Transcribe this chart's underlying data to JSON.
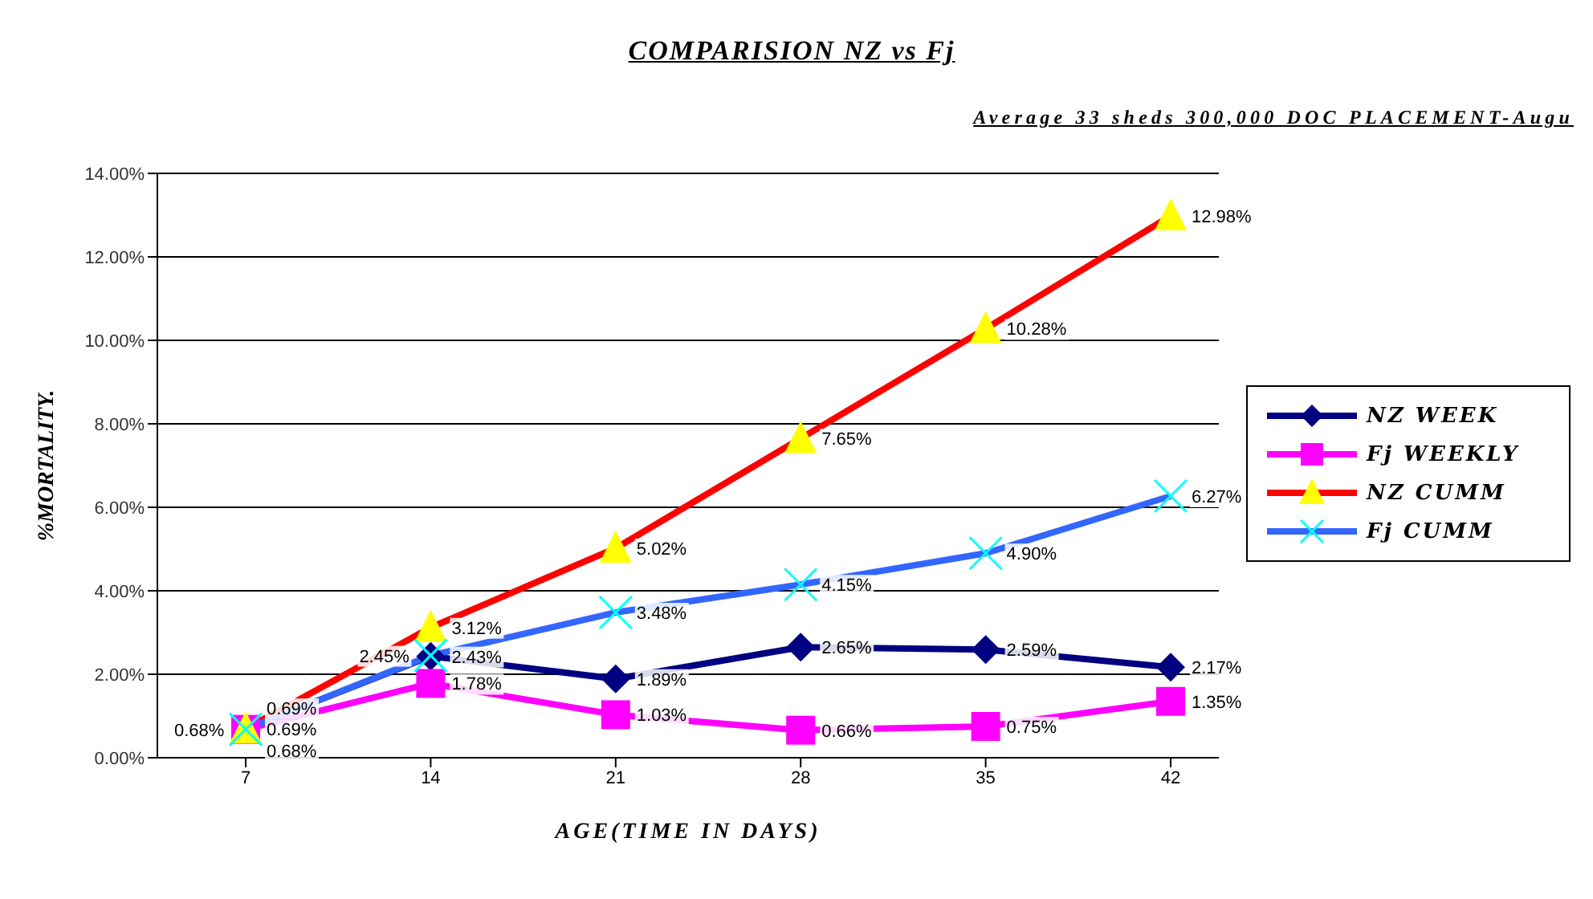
{
  "chart_data": {
    "type": "line",
    "title": "COMPARISION NZ vs Fj",
    "subtitle": "Average 33 sheds 300,000 DOC PLACEMENT-Augu",
    "xlabel": "AGE(TIME IN DAYS)",
    "ylabel": "%MORTALITY.",
    "categories": [
      "7",
      "14",
      "21",
      "28",
      "35",
      "42"
    ],
    "series": [
      {
        "name": "NZ WEEK",
        "color": "#000080",
        "marker": "diamond",
        "values": [
          0.69,
          2.43,
          1.89,
          2.65,
          2.59,
          2.17
        ],
        "value_labels": [
          "0.69%",
          "2.43%",
          "1.89%",
          "2.65%",
          "2.59%",
          "2.17%"
        ]
      },
      {
        "name": "Fj WEEKLY",
        "color": "#ff00ff",
        "marker": "square",
        "values": [
          0.68,
          1.78,
          1.03,
          0.66,
          0.75,
          1.35
        ],
        "value_labels": [
          "0.68%",
          "1.78%",
          "1.03%",
          "0.66%",
          "0.75%",
          "1.35%"
        ]
      },
      {
        "name": "NZ CUMM",
        "color": "#ff0000",
        "colors": [
          "#ffff00",
          "#ffff00",
          "#ffff00",
          "#ffff00",
          "#ffff00",
          "#ffff00"
        ],
        "marker": "triangle",
        "values": [
          0.69,
          3.12,
          5.02,
          7.65,
          10.28,
          12.98
        ],
        "value_labels": [
          "0.69%",
          "3.12%",
          "5.02%",
          "7.65%",
          "10.28%",
          "12.98%"
        ]
      },
      {
        "name": "Fj CUMM",
        "color": "#3366ff",
        "colors": [
          "#00ffff",
          "#00ffff",
          "#00ffff",
          "#00ffff",
          "#00ffff",
          "#00ffff"
        ],
        "marker": "cross",
        "values": [
          0.68,
          2.45,
          3.48,
          4.15,
          4.9,
          6.27
        ],
        "value_labels": [
          "0.68%",
          "2.45%",
          "3.48%",
          "4.15%",
          "4.90%",
          "6.27%"
        ]
      }
    ],
    "ylim": [
      0,
      14
    ],
    "yticks": [
      {
        "value": 0,
        "label": "0.00%"
      },
      {
        "value": 2,
        "label": "2.00%"
      },
      {
        "value": 4,
        "label": "4.00%"
      },
      {
        "value": 6,
        "label": "6.00%"
      },
      {
        "value": 8,
        "label": "8.00%"
      },
      {
        "value": 10,
        "label": "10.00%"
      },
      {
        "value": 12,
        "label": "12.00%"
      },
      {
        "value": 14,
        "label": "14.00%"
      }
    ],
    "grid": "y",
    "legend": "right",
    "line_style": "solid"
  }
}
